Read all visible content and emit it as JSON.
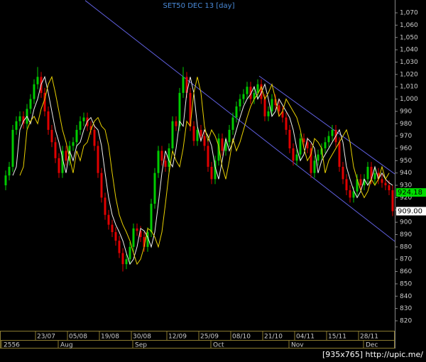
{
  "chart_data": {
    "type": "candlestick",
    "title": "SET50 DEC 13   [day]",
    "open": [
      930,
      938,
      945,
      975,
      982,
      986,
      980,
      992,
      1000,
      1012,
      1018,
      1005,
      990,
      975,
      965,
      952,
      940,
      958,
      950,
      962,
      965,
      975,
      982,
      985,
      978,
      975,
      962,
      940,
      920,
      906,
      898,
      892,
      885,
      875,
      866,
      870,
      880,
      895,
      893,
      888,
      880,
      892,
      915,
      940,
      958,
      950,
      945,
      960,
      982,
      978,
      1005,
      1018,
      1005,
      978,
      966,
      975,
      970,
      962,
      945,
      935,
      950,
      968,
      958,
      965,
      975,
      985,
      994,
      1000,
      1004,
      1010,
      1000,
      1005,
      1012,
      1000,
      986,
      990,
      1000,
      995,
      990,
      985,
      975,
      960,
      950,
      955,
      968,
      965,
      960,
      940,
      950,
      955,
      960,
      965,
      970,
      975,
      965,
      945,
      935,
      926,
      920,
      925,
      935,
      930,
      935,
      945,
      935,
      940,
      935,
      932,
      930,
      926
    ],
    "high": [
      942,
      949,
      979,
      986,
      990,
      990,
      996,
      1004,
      1016,
      1026,
      1022,
      1009,
      994,
      979,
      969,
      956,
      962,
      962,
      966,
      969,
      979,
      986,
      989,
      989,
      982,
      979,
      966,
      944,
      924,
      910,
      902,
      896,
      889,
      879,
      874,
      884,
      899,
      899,
      897,
      892,
      896,
      919,
      944,
      962,
      962,
      954,
      964,
      986,
      986,
      1009,
      1026,
      1022,
      1009,
      982,
      979,
      979,
      974,
      966,
      949,
      954,
      972,
      972,
      969,
      979,
      989,
      998,
      1004,
      1008,
      1014,
      1014,
      1009,
      1016,
      1016,
      1004,
      994,
      1004,
      1004,
      999,
      994,
      989,
      979,
      964,
      959,
      972,
      972,
      969,
      964,
      954,
      959,
      964,
      969,
      974,
      979,
      979,
      969,
      949,
      939,
      930,
      929,
      939,
      939,
      939,
      949,
      949,
      944,
      944,
      939,
      936,
      934,
      930
    ],
    "low": [
      926,
      934,
      941,
      971,
      978,
      976,
      976,
      988,
      996,
      1008,
      1001,
      986,
      971,
      961,
      948,
      936,
      936,
      946,
      946,
      958,
      961,
      971,
      978,
      974,
      971,
      958,
      936,
      916,
      902,
      894,
      888,
      881,
      871,
      860,
      862,
      866,
      876,
      889,
      884,
      876,
      876,
      888,
      911,
      936,
      946,
      941,
      941,
      956,
      974,
      974,
      1001,
      1001,
      974,
      962,
      962,
      966,
      958,
      941,
      931,
      931,
      946,
      954,
      954,
      961,
      971,
      981,
      990,
      996,
      1000,
      996,
      996,
      1001,
      996,
      982,
      982,
      986,
      991,
      986,
      981,
      971,
      956,
      946,
      946,
      951,
      961,
      956,
      936,
      936,
      946,
      951,
      956,
      961,
      966,
      961,
      941,
      931,
      922,
      916,
      916,
      921,
      926,
      926,
      931,
      931,
      931,
      931,
      928,
      926,
      922,
      905
    ],
    "close": [
      938,
      945,
      975,
      982,
      986,
      980,
      992,
      1000,
      1012,
      1018,
      1005,
      990,
      975,
      965,
      952,
      940,
      958,
      950,
      962,
      965,
      975,
      982,
      985,
      978,
      975,
      962,
      940,
      920,
      906,
      898,
      892,
      885,
      875,
      866,
      870,
      880,
      895,
      893,
      888,
      880,
      892,
      915,
      940,
      958,
      950,
      945,
      960,
      982,
      978,
      1005,
      1018,
      1005,
      978,
      966,
      975,
      970,
      962,
      945,
      935,
      950,
      968,
      958,
      965,
      975,
      985,
      994,
      1000,
      1004,
      1010,
      1000,
      1005,
      1012,
      1000,
      986,
      990,
      1000,
      995,
      990,
      985,
      975,
      960,
      950,
      955,
      968,
      965,
      960,
      940,
      950,
      955,
      960,
      965,
      970,
      975,
      965,
      945,
      935,
      926,
      920,
      925,
      935,
      930,
      935,
      945,
      935,
      940,
      935,
      932,
      930,
      926,
      909
    ],
    "up_color": "#00cc00",
    "down_color": "#e00000",
    "lines": [
      {
        "color": "#f0f0f0",
        "values": [
          null,
          null,
          938,
          945,
          975,
          982,
          986,
          980,
          992,
          1000,
          1012,
          1018,
          1005,
          990,
          975,
          965,
          952,
          940,
          958,
          950,
          962,
          965,
          975,
          982,
          985,
          978,
          975,
          962,
          940,
          920,
          906,
          898,
          892,
          885,
          875,
          866,
          870,
          880,
          895,
          893,
          888,
          880,
          892,
          915,
          940,
          958,
          950,
          945,
          960,
          982,
          978,
          1005,
          1018,
          1005,
          978,
          966,
          975,
          970,
          962,
          945,
          935,
          950,
          968,
          958,
          965,
          975,
          985,
          994,
          1000,
          1004,
          1010,
          1000,
          1005,
          1012,
          1000,
          986,
          990,
          1000,
          995,
          990,
          985,
          975,
          960,
          950,
          955,
          968,
          965,
          960,
          940,
          950,
          955,
          960,
          965,
          970,
          975,
          965,
          945,
          935,
          926,
          920,
          925,
          935,
          930,
          935,
          945,
          935,
          940,
          935,
          932,
          930
        ]
      },
      {
        "color": "#e8d000",
        "values": [
          null,
          null,
          null,
          null,
          938,
          945,
          975,
          982,
          986,
          980,
          992,
          1000,
          1012,
          1018,
          1005,
          990,
          975,
          965,
          952,
          940,
          958,
          950,
          962,
          965,
          975,
          982,
          985,
          978,
          975,
          962,
          940,
          920,
          906,
          898,
          892,
          885,
          875,
          866,
          870,
          880,
          895,
          893,
          888,
          880,
          892,
          915,
          940,
          958,
          950,
          945,
          960,
          982,
          978,
          1005,
          1018,
          1005,
          978,
          966,
          975,
          970,
          962,
          945,
          935,
          950,
          968,
          958,
          965,
          975,
          985,
          994,
          1000,
          1004,
          1010,
          1000,
          1005,
          1012,
          1000,
          986,
          990,
          1000,
          995,
          990,
          985,
          975,
          960,
          950,
          955,
          968,
          965,
          960,
          940,
          950,
          955,
          960,
          965,
          970,
          975,
          965,
          945,
          935,
          926,
          920,
          925,
          935,
          930,
          935,
          945,
          935,
          940
        ]
      }
    ],
    "trendlines": [
      {
        "color": "#6060e0",
        "start": [
          22.4,
          1080
        ],
        "end": [
          109.6,
          884.5
        ]
      },
      {
        "color": "#6060e0",
        "start": [
          71.4,
          1018.7
        ],
        "end": [
          109.6,
          939.2
        ]
      }
    ],
    "ylim": [
      812.5,
      1080.4
    ],
    "yticks": [
      820,
      830,
      840,
      850,
      860,
      870,
      880,
      890,
      900,
      910,
      920,
      930,
      940,
      950,
      960,
      970,
      980,
      990,
      {
        "value": 1000,
        "label": "1,000"
      },
      {
        "value": 1010,
        "label": "1,010"
      },
      {
        "value": 1020,
        "label": "1,020"
      },
      {
        "value": 1030,
        "label": "1,030"
      },
      {
        "value": 1040,
        "label": "1,040"
      },
      {
        "value": 1050,
        "label": "1,050"
      },
      {
        "value": 1060,
        "label": "1,060"
      },
      {
        "value": 1070,
        "label": "1,070"
      }
    ],
    "price_tags": [
      {
        "value": 924.18,
        "color": "#00dd00"
      },
      {
        "value": {
          "value": 909,
          "label": "909.00"
        },
        "color": "#ffffff"
      }
    ],
    "date_labels": [
      {
        "index": 9,
        "label": "23/07"
      },
      {
        "index": 18,
        "label": "05/08"
      },
      {
        "index": 27,
        "label": "19/08"
      },
      {
        "index": 36,
        "label": "30/08"
      },
      {
        "index": 46,
        "label": "12/09"
      },
      {
        "index": 55,
        "label": "25/09"
      },
      {
        "index": 64,
        "label": "08/10"
      },
      {
        "index": 73,
        "label": "21/10"
      },
      {
        "index": 82,
        "label": "04/11"
      },
      {
        "index": 91,
        "label": "15/11"
      },
      {
        "index": 100,
        "label": "28/11"
      }
    ],
    "period_labels": [
      {
        "index": 0,
        "label": "2556"
      },
      {
        "index": 16,
        "label": "Aug"
      },
      {
        "index": 37,
        "label": "Sep"
      },
      {
        "index": 59,
        "label": "Oct"
      },
      {
        "index": 81,
        "label": "Nov"
      },
      {
        "index": 102,
        "label": "Dec"
      }
    ],
    "watermark": "[935x765] http://upic.me/"
  }
}
